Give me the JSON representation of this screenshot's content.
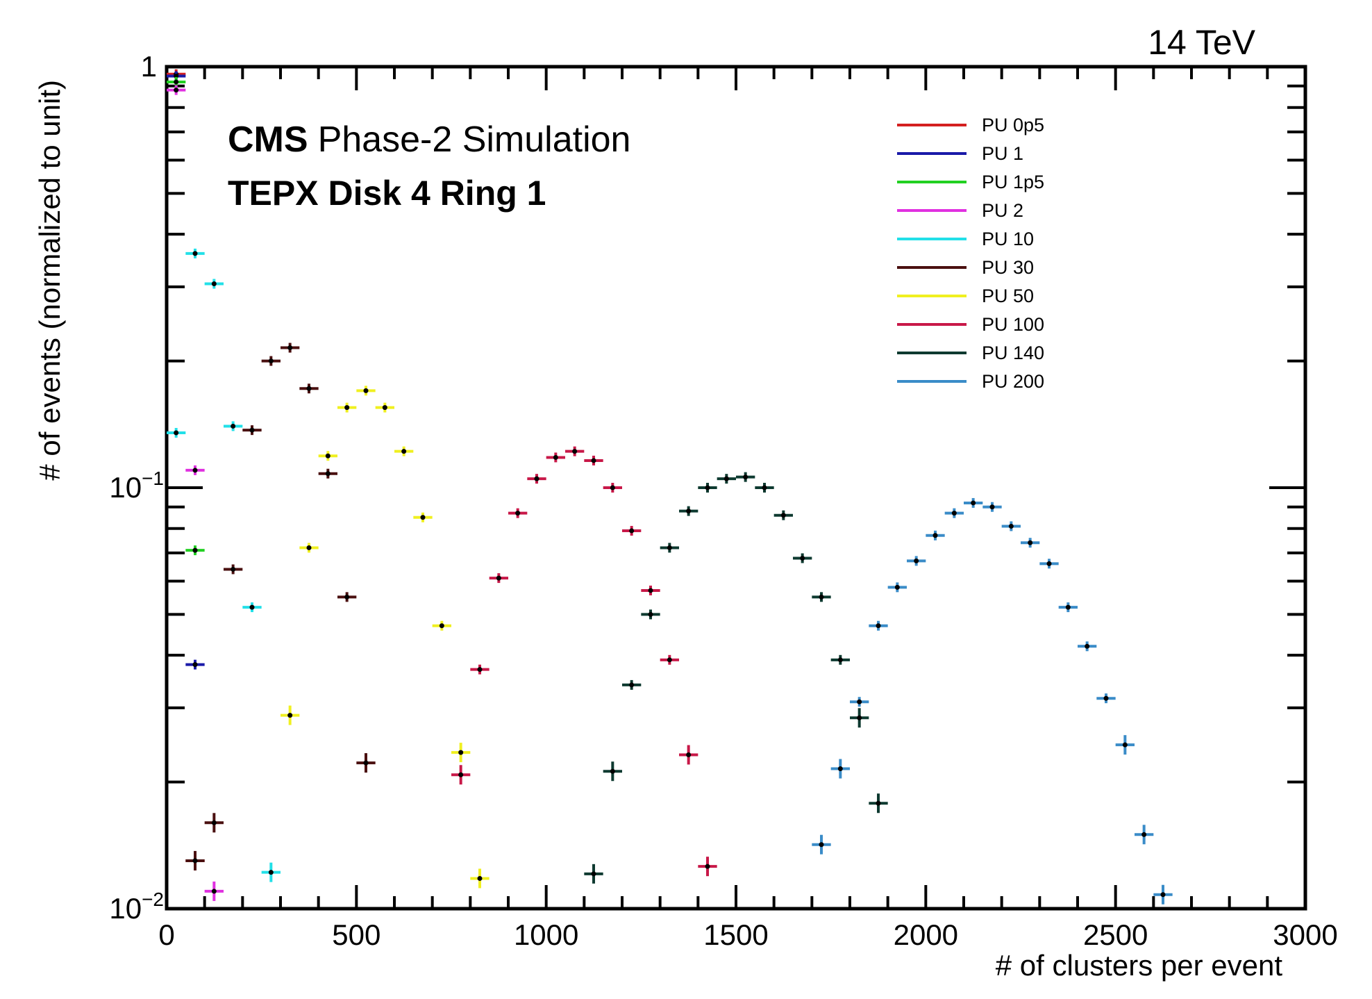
{
  "header": {
    "energy": "14 TeV",
    "experiment": "CMS",
    "subtitle": "Phase-2 Simulation",
    "region": "TEPX Disk 4 Ring 1"
  },
  "chart_data": {
    "type": "scatter",
    "xlabel": "# of clusters per event",
    "ylabel": "# of events (normalized to unit)",
    "xlim": [
      0,
      3000
    ],
    "ylim": [
      0.01,
      1
    ],
    "yscale": "log",
    "x_bin_width": 50,
    "x_ticks": [
      {
        "value": 0,
        "label": "0"
      },
      {
        "value": 500,
        "label": "500"
      },
      {
        "value": 1000,
        "label": "1000"
      },
      {
        "value": 1500,
        "label": "1500"
      },
      {
        "value": 2000,
        "label": "2000"
      },
      {
        "value": 2500,
        "label": "2500"
      },
      {
        "value": 3000,
        "label": "3000"
      }
    ],
    "y_ticks": [
      {
        "value": 0.01,
        "label": "10",
        "exponent": "−2"
      },
      {
        "value": 0.1,
        "label": "10",
        "exponent": "−1"
      },
      {
        "value": 1,
        "label": "1",
        "exponent": ""
      }
    ],
    "legend_position": "top-right",
    "grid": false,
    "series": [
      {
        "name": "PU 0p5",
        "color": "#d42020",
        "points": [
          [
            25,
            0.96
          ],
          [
            75,
            0.013
          ]
        ]
      },
      {
        "name": "PU 1",
        "color": "#1a1aa8",
        "points": [
          [
            25,
            0.95
          ],
          [
            75,
            0.038
          ]
        ]
      },
      {
        "name": "PU 1p5",
        "color": "#22d022",
        "points": [
          [
            25,
            0.92
          ],
          [
            75,
            0.071
          ]
        ]
      },
      {
        "name": "PU 2",
        "color": "#e030e0",
        "points": [
          [
            25,
            0.88
          ],
          [
            75,
            0.11
          ],
          [
            125,
            0.011
          ]
        ]
      },
      {
        "name": "PU 10",
        "color": "#22e0e8",
        "points": [
          [
            25,
            0.135
          ],
          [
            75,
            0.36
          ],
          [
            125,
            0.305
          ],
          [
            175,
            0.14
          ],
          [
            225,
            0.052
          ],
          [
            275,
            0.0122
          ]
        ]
      },
      {
        "name": "PU 30",
        "color": "#4a1010",
        "points": [
          [
            75,
            0.013
          ],
          [
            125,
            0.016
          ],
          [
            175,
            0.064
          ],
          [
            225,
            0.137
          ],
          [
            275,
            0.2
          ],
          [
            325,
            0.215
          ],
          [
            375,
            0.172
          ],
          [
            425,
            0.108
          ],
          [
            475,
            0.055
          ],
          [
            525,
            0.0222
          ]
        ]
      },
      {
        "name": "PU 50",
        "color": "#f0f020",
        "points": [
          [
            325,
            0.0288
          ],
          [
            375,
            0.072
          ],
          [
            425,
            0.119
          ],
          [
            475,
            0.155
          ],
          [
            525,
            0.17
          ],
          [
            575,
            0.155
          ],
          [
            625,
            0.122
          ],
          [
            675,
            0.085
          ],
          [
            725,
            0.047
          ],
          [
            775,
            0.0235
          ],
          [
            825,
            0.0118
          ]
        ]
      },
      {
        "name": "PU 100",
        "color": "#c81848",
        "points": [
          [
            775,
            0.0208
          ],
          [
            825,
            0.037
          ],
          [
            875,
            0.061
          ],
          [
            925,
            0.087
          ],
          [
            975,
            0.105
          ],
          [
            1025,
            0.118
          ],
          [
            1075,
            0.122
          ],
          [
            1125,
            0.116
          ],
          [
            1175,
            0.1
          ],
          [
            1225,
            0.079
          ],
          [
            1275,
            0.057
          ],
          [
            1325,
            0.039
          ],
          [
            1375,
            0.0232
          ],
          [
            1425,
            0.0126
          ]
        ]
      },
      {
        "name": "PU 140",
        "color": "#0e3a30",
        "points": [
          [
            1125,
            0.0121
          ],
          [
            1175,
            0.0212
          ],
          [
            1225,
            0.034
          ],
          [
            1275,
            0.05
          ],
          [
            1325,
            0.072
          ],
          [
            1375,
            0.088
          ],
          [
            1425,
            0.1
          ],
          [
            1475,
            0.105
          ],
          [
            1525,
            0.106
          ],
          [
            1575,
            0.1
          ],
          [
            1625,
            0.086
          ],
          [
            1675,
            0.068
          ],
          [
            1725,
            0.055
          ],
          [
            1775,
            0.039
          ],
          [
            1825,
            0.0284
          ],
          [
            1875,
            0.0178
          ]
        ]
      },
      {
        "name": "PU 200",
        "color": "#3a8cc8",
        "points": [
          [
            1725,
            0.0142
          ],
          [
            1775,
            0.0215
          ],
          [
            1825,
            0.031
          ],
          [
            1875,
            0.047
          ],
          [
            1925,
            0.058
          ],
          [
            1975,
            0.067
          ],
          [
            2025,
            0.077
          ],
          [
            2075,
            0.087
          ],
          [
            2125,
            0.092
          ],
          [
            2175,
            0.09
          ],
          [
            2225,
            0.081
          ],
          [
            2275,
            0.074
          ],
          [
            2325,
            0.066
          ],
          [
            2375,
            0.052
          ],
          [
            2425,
            0.042
          ],
          [
            2475,
            0.0316
          ],
          [
            2525,
            0.0245
          ],
          [
            2575,
            0.015
          ],
          [
            2625,
            0.0108
          ]
        ]
      }
    ]
  }
}
